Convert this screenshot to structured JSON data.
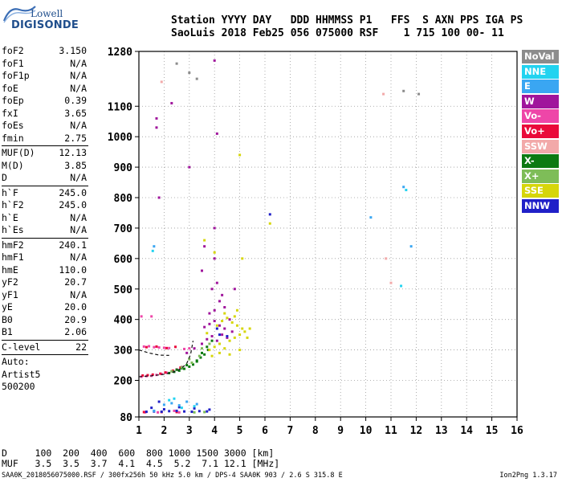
{
  "logo": {
    "line1": "Lowell",
    "line2": "DIGISONDE"
  },
  "header": {
    "line1": "Station YYYY DAY   DDD HHMMSS P1   FFS  S AXN PPS IGA PS",
    "line2": "SaoLuis 2018 Feb25 056 075000 RSF    1 715 100 00- 11"
  },
  "parameters": [
    [
      {
        "name": "foF2",
        "value": "3.150"
      },
      {
        "name": "foF1",
        "value": "N/A"
      },
      {
        "name": "foF1p",
        "value": "N/A"
      },
      {
        "name": "foE",
        "value": "N/A"
      },
      {
        "name": "foEp",
        "value": "0.39"
      },
      {
        "name": "fxI",
        "value": "3.65"
      },
      {
        "name": "foEs",
        "value": "N/A"
      },
      {
        "name": "fmin",
        "value": "2.75"
      }
    ],
    [
      {
        "name": "MUF(D)",
        "value": "12.13"
      },
      {
        "name": "M(D)",
        "value": "3.85"
      },
      {
        "name": "D",
        "value": "N/A"
      }
    ],
    [
      {
        "name": "h`F",
        "value": "245.0"
      },
      {
        "name": "h`F2",
        "value": "245.0"
      },
      {
        "name": "h`E",
        "value": "N/A"
      },
      {
        "name": "h`Es",
        "value": "N/A"
      }
    ],
    [
      {
        "name": "hmF2",
        "value": "240.1"
      },
      {
        "name": "hmF1",
        "value": "N/A"
      },
      {
        "name": "hmE",
        "value": "110.0"
      },
      {
        "name": "yF2",
        "value": "20.7"
      },
      {
        "name": "yF1",
        "value": "N/A"
      },
      {
        "name": "yE",
        "value": "20.0"
      },
      {
        "name": "B0",
        "value": "20.9"
      },
      {
        "name": "B1",
        "value": "2.06"
      }
    ],
    [
      {
        "name": "C-level",
        "value": "22"
      }
    ]
  ],
  "scaling": {
    "line1": "Auto:",
    "line2": "Artist5",
    "line3": "500200"
  },
  "legend": [
    {
      "label": "NoVal",
      "color": "#8c8c8c"
    },
    {
      "label": "NNE",
      "color": "#22d3f0"
    },
    {
      "label": "E",
      "color": "#3aa6f2"
    },
    {
      "label": "W",
      "color": "#a0159c"
    },
    {
      "label": "Vo-",
      "color": "#ee46a8"
    },
    {
      "label": "Vo+",
      "color": "#ea0a3a"
    },
    {
      "label": "SSW",
      "color": "#f2a9a9"
    },
    {
      "label": "X-",
      "color": "#0c7a12"
    },
    {
      "label": "X+",
      "color": "#7ebd58"
    },
    {
      "label": "SSE",
      "color": "#d6d60a"
    },
    {
      "label": "NNW",
      "color": "#2020c8"
    }
  ],
  "footer": {
    "row1": "D     100  200  400  600  800 1000 1500 3000 [km]",
    "row2": "MUF   3.5  3.5  3.7  4.1  4.5  5.2  7.1 12.1 [MHz]",
    "status": "SAA0K_2018056075000.RSF / 300fx256h 50 kHz 5.0 km / DPS-4 SAA0K 903 / 2.6 S 315.8 E",
    "version": "Ion2Png 1.3.17"
  },
  "chart_data": {
    "type": "scatter",
    "title": "",
    "xlabel": "",
    "ylabel": "",
    "xlim": [
      1,
      16
    ],
    "ylim": [
      80,
      1280
    ],
    "x_ticks": [
      1,
      2,
      3,
      4,
      5,
      6,
      7,
      8,
      9,
      10,
      11,
      12,
      13,
      14,
      15,
      16
    ],
    "y_ticks": [
      80,
      200,
      300,
      400,
      500,
      600,
      700,
      800,
      900,
      1000,
      1100,
      1280
    ],
    "grid": "dotted",
    "legend_placement": "right",
    "trace_F2": {
      "color": "#111111",
      "x": [
        1.0,
        1.5,
        2.0,
        2.4,
        2.7,
        2.9,
        3.05,
        3.15
      ],
      "y": [
        212,
        215,
        220,
        228,
        240,
        256,
        285,
        330
      ]
    },
    "trace_E": {
      "color": "#111111",
      "x": [
        1.0,
        1.4,
        1.8,
        2.2
      ],
      "y": [
        300,
        290,
        283,
        282
      ]
    },
    "series": [
      {
        "name": "Vo-",
        "x": [
          1.1,
          1.3,
          1.5,
          1.7,
          1.9,
          2.1,
          2.3,
          2.5,
          2.7,
          1.2,
          1.6,
          2.0,
          1.4,
          1.8,
          2.2,
          1.25,
          1.75,
          2.6,
          2.4,
          1.5,
          1.1,
          2.8,
          3.0
        ],
        "y": [
          212,
          214,
          215,
          218,
          221,
          225,
          230,
          236,
          244,
          311,
          309,
          307,
          312,
          308,
          306,
          95,
          95,
          95,
          100,
          410,
          410,
          303,
          305
        ]
      },
      {
        "name": "Vo+",
        "x": [
          1.15,
          1.35,
          1.55,
          1.85,
          2.05,
          2.35,
          2.65,
          1.3,
          1.7,
          2.1,
          2.45,
          1.2,
          1.9,
          2.5
        ],
        "y": [
          216,
          217,
          219,
          222,
          226,
          232,
          242,
          309,
          311,
          306,
          310,
          96,
          96,
          96
        ]
      },
      {
        "name": "X-",
        "x": [
          2.2,
          2.4,
          2.6,
          2.8,
          3.0,
          3.15,
          3.3,
          3.45,
          3.6,
          3.75,
          3.9,
          2.5,
          2.9,
          3.3,
          3.5,
          3.7,
          2.7
        ],
        "y": [
          224,
          228,
          232,
          238,
          245,
          252,
          262,
          275,
          285,
          300,
          330,
          235,
          250,
          265,
          290,
          310,
          240
        ]
      },
      {
        "name": "X+",
        "x": [
          2.3,
          2.7,
          3.1,
          3.4,
          3.8,
          3.2,
          3.6,
          3.0,
          3.5
        ],
        "y": [
          230,
          243,
          258,
          280,
          320,
          95,
          96,
          270,
          305
        ]
      },
      {
        "name": "W",
        "x": [
          3.5,
          3.7,
          3.9,
          4.1,
          4.3,
          4.5,
          4.7,
          3.6,
          3.8,
          4.0,
          4.2,
          4.4,
          4.6,
          3.8,
          4.0,
          4.2,
          4.4,
          3.9,
          4.1,
          4.3,
          1.7,
          1.7,
          1.8,
          2.3,
          3.0,
          4.0,
          4.1,
          4.0,
          4.0,
          3.5,
          3.6,
          4.8,
          2.9,
          3.2
        ],
        "y": [
          320,
          335,
          345,
          330,
          350,
          340,
          360,
          375,
          385,
          395,
          380,
          370,
          400,
          420,
          430,
          460,
          440,
          500,
          520,
          480,
          1060,
          1030,
          800,
          1110,
          900,
          1250,
          1010,
          700,
          600,
          560,
          640,
          500,
          290,
          305
        ]
      },
      {
        "name": "SSE",
        "x": [
          3.8,
          4.0,
          4.2,
          4.4,
          4.6,
          4.8,
          5.0,
          5.2,
          5.4,
          4.1,
          4.3,
          4.5,
          4.7,
          4.9,
          5.1,
          3.9,
          4.2,
          4.6,
          5.0,
          4.4,
          4.8,
          6.2,
          5.0,
          5.1,
          4.0,
          3.6,
          4.9,
          5.3,
          3.7
        ],
        "y": [
          300,
          310,
          320,
          305,
          330,
          340,
          350,
          360,
          370,
          380,
          395,
          405,
          390,
          380,
          370,
          280,
          290,
          285,
          300,
          420,
          410,
          715,
          940,
          600,
          620,
          660,
          430,
          340,
          355
        ]
      },
      {
        "name": "NNW",
        "x": [
          1.3,
          1.6,
          1.9,
          2.2,
          2.5,
          2.8,
          3.1,
          3.4,
          3.7,
          1.5,
          2.0,
          2.6,
          3.2,
          3.8,
          4.2,
          4.1,
          4.5,
          6.2,
          1.8
        ],
        "y": [
          97,
          98,
          97,
          99,
          100,
          98,
          97,
          99,
          98,
          110,
          105,
          112,
          108,
          104,
          350,
          370,
          345,
          745,
          130
        ]
      },
      {
        "name": "E",
        "x": [
          2.0,
          2.3,
          2.6,
          2.9,
          3.3,
          1.6,
          10.2,
          11.5,
          11.8,
          1.6
        ],
        "y": [
          120,
          125,
          118,
          130,
          122,
          100,
          735,
          835,
          640,
          640
        ]
      },
      {
        "name": "NNE",
        "x": [
          2.2,
          2.7,
          3.2,
          2.4,
          1.55,
          11.6,
          11.4
        ],
        "y": [
          135,
          110,
          115,
          140,
          625,
          825,
          510
        ]
      },
      {
        "name": "SSW",
        "x": [
          10.7,
          10.8,
          11.0,
          1.9
        ],
        "y": [
          1140,
          600,
          520,
          1180
        ]
      },
      {
        "name": "NoVal",
        "x": [
          2.5,
          3.0,
          3.3,
          11.5,
          12.1
        ],
        "y": [
          1240,
          1210,
          1190,
          1150,
          1140
        ]
      }
    ]
  }
}
